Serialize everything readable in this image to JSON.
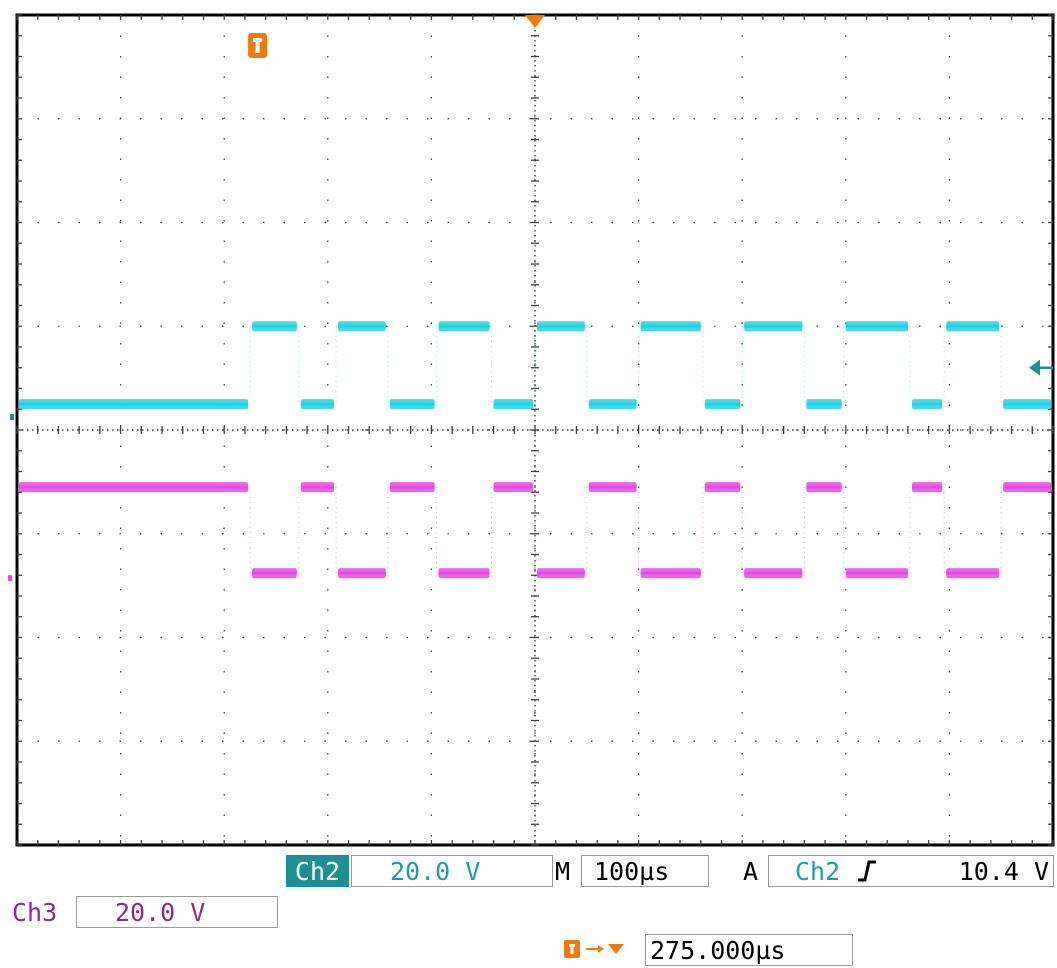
{
  "colors": {
    "ch2": "#22d3e3",
    "ch2_text": "#1b9ea8",
    "ch2_badge": "#1f8f96",
    "ch3": "#e64ae6",
    "ch3_text": "#8d2a8d",
    "trigger": "#f07a10",
    "grid": "#404040",
    "border": "#000000"
  },
  "icons": {
    "trigger_marker": "trigger-t-icon",
    "trigger_level": "trigger-level-arrow-icon",
    "trigger_position": "trigger-position-arrow-icon",
    "rising_edge": "rising-edge-icon"
  },
  "status": {
    "ch2_label": "Ch2",
    "ch2_scale": "20.0 V",
    "timebase_label": "M",
    "timebase": "100µs",
    "trigger_mode_label": "A",
    "trigger_source": "Ch2",
    "trigger_level": "10.4 V",
    "ch3_label": "Ch3",
    "ch3_scale": "20.0 V",
    "trigger_offset": "275.000µs"
  },
  "chart_data": {
    "type": "line",
    "x_divisions": 10,
    "y_divisions": 8,
    "units": "divisions",
    "grid": true,
    "series": [
      {
        "id": "ch2",
        "low": 4.25,
        "high": 5.0,
        "segments": [
          [
            0.0,
            2.25,
            "low"
          ],
          [
            2.25,
            2.72,
            "high"
          ],
          [
            2.72,
            3.08,
            "low"
          ],
          [
            3.08,
            3.58,
            "high"
          ],
          [
            3.58,
            4.05,
            "low"
          ],
          [
            4.05,
            4.58,
            "high"
          ],
          [
            4.58,
            5.0,
            "low"
          ],
          [
            5.0,
            5.5,
            "high"
          ],
          [
            5.5,
            6.0,
            "low"
          ],
          [
            6.0,
            6.62,
            "high"
          ],
          [
            6.62,
            7.0,
            "low"
          ],
          [
            7.0,
            7.6,
            "high"
          ],
          [
            7.6,
            7.98,
            "low"
          ],
          [
            7.98,
            8.62,
            "high"
          ],
          [
            8.62,
            8.95,
            "low"
          ],
          [
            8.95,
            9.5,
            "high"
          ],
          [
            9.5,
            10.0,
            "low"
          ]
        ]
      },
      {
        "id": "ch3",
        "high": 3.45,
        "low": 2.62,
        "segments": [
          [
            0.0,
            2.25,
            "high"
          ],
          [
            2.25,
            2.72,
            "low"
          ],
          [
            2.72,
            3.08,
            "high"
          ],
          [
            3.08,
            3.58,
            "low"
          ],
          [
            3.58,
            4.05,
            "high"
          ],
          [
            4.05,
            4.58,
            "low"
          ],
          [
            4.58,
            5.0,
            "high"
          ],
          [
            5.0,
            5.5,
            "low"
          ],
          [
            5.5,
            6.0,
            "high"
          ],
          [
            6.0,
            6.62,
            "low"
          ],
          [
            6.62,
            7.0,
            "high"
          ],
          [
            7.0,
            7.6,
            "low"
          ],
          [
            7.6,
            7.98,
            "high"
          ],
          [
            7.98,
            8.62,
            "low"
          ],
          [
            8.62,
            8.95,
            "high"
          ],
          [
            8.95,
            9.5,
            "low"
          ],
          [
            9.5,
            10.0,
            "high"
          ]
        ]
      }
    ],
    "trigger_position_div": 5.0,
    "trigger_marker_div": 2.25,
    "trigger_level_div": 4.6
  }
}
